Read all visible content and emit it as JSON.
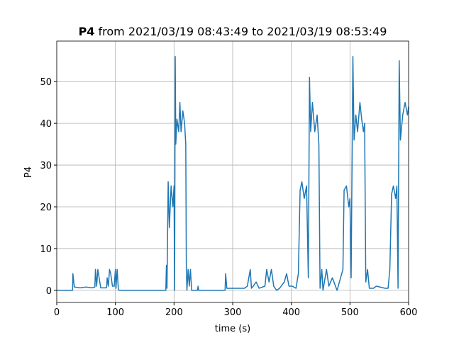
{
  "chart_data": {
    "type": "line",
    "title_bold": "P4",
    "title": "from 2021/03/19 08:43:49 to 2021/03/19 08:53:49",
    "xlabel": "time (s)",
    "ylabel": "P4",
    "x": [
      0,
      27,
      27.5,
      30,
      40,
      50,
      60,
      65,
      66,
      68,
      70,
      75,
      85,
      86,
      88,
      90,
      92,
      95,
      98,
      100,
      101,
      103,
      105,
      106,
      150,
      186,
      187,
      188,
      190,
      192,
      195,
      198,
      200,
      201,
      202,
      203,
      205,
      208,
      210,
      212,
      215,
      218,
      220,
      221,
      222,
      224,
      226,
      228,
      230,
      240,
      241,
      242,
      287,
      288,
      290,
      300,
      320,
      325,
      330,
      332,
      335,
      340,
      345,
      355,
      358,
      362,
      366,
      370,
      375,
      380,
      388,
      392,
      396,
      402,
      408,
      412,
      415,
      418,
      422,
      426,
      429,
      431,
      433,
      436,
      440,
      444,
      447,
      449,
      452,
      454,
      460,
      464,
      470,
      478,
      484,
      488,
      490,
      494,
      498,
      500,
      502,
      505,
      507,
      510,
      513,
      517,
      520,
      523,
      525,
      527,
      530,
      533,
      540,
      545,
      560,
      565,
      568,
      571,
      574,
      578,
      580,
      582,
      584,
      586,
      590,
      594,
      598,
      600
    ],
    "series": [
      {
        "name": "P4",
        "color": "#1f77b4",
        "values": [
          0,
          0,
          4,
          0.8,
          0.6,
          0.8,
          0.6,
          0.8,
          5,
          1,
          5,
          0.6,
          0.6,
          3,
          1,
          5,
          4,
          1,
          1,
          5,
          0.5,
          5,
          0.3,
          0,
          0,
          0,
          6,
          0.5,
          26,
          15,
          25,
          20,
          25,
          0,
          56,
          35,
          41,
          38,
          45,
          38,
          43,
          40,
          35,
          5,
          0,
          5,
          1,
          5,
          0,
          0,
          1,
          0,
          0,
          4,
          0.5,
          0.5,
          0.5,
          1,
          5,
          0.5,
          1,
          2,
          0.5,
          1,
          5,
          2,
          5,
          1,
          0,
          0.5,
          2,
          4,
          1,
          1,
          0.5,
          4,
          24,
          26,
          22,
          25,
          3,
          51,
          38,
          45,
          38,
          42,
          35,
          0.5,
          5,
          0,
          5,
          1,
          3,
          0,
          3,
          5,
          24,
          25,
          20,
          22,
          3,
          56,
          36,
          42,
          38,
          45,
          41,
          38,
          40,
          2,
          5,
          0.5,
          0.5,
          1,
          0.5,
          0.5,
          5,
          23,
          25,
          22,
          25,
          0.5,
          55,
          36,
          42,
          45,
          42,
          44
        ]
      }
    ],
    "xlim": [
      0,
      600
    ],
    "xticks": [
      0,
      100,
      200,
      300,
      400,
      500,
      600
    ],
    "ylim": [
      -2.9,
      59.7
    ],
    "yticks": [
      0,
      10,
      20,
      30,
      40,
      50
    ],
    "grid": true
  }
}
